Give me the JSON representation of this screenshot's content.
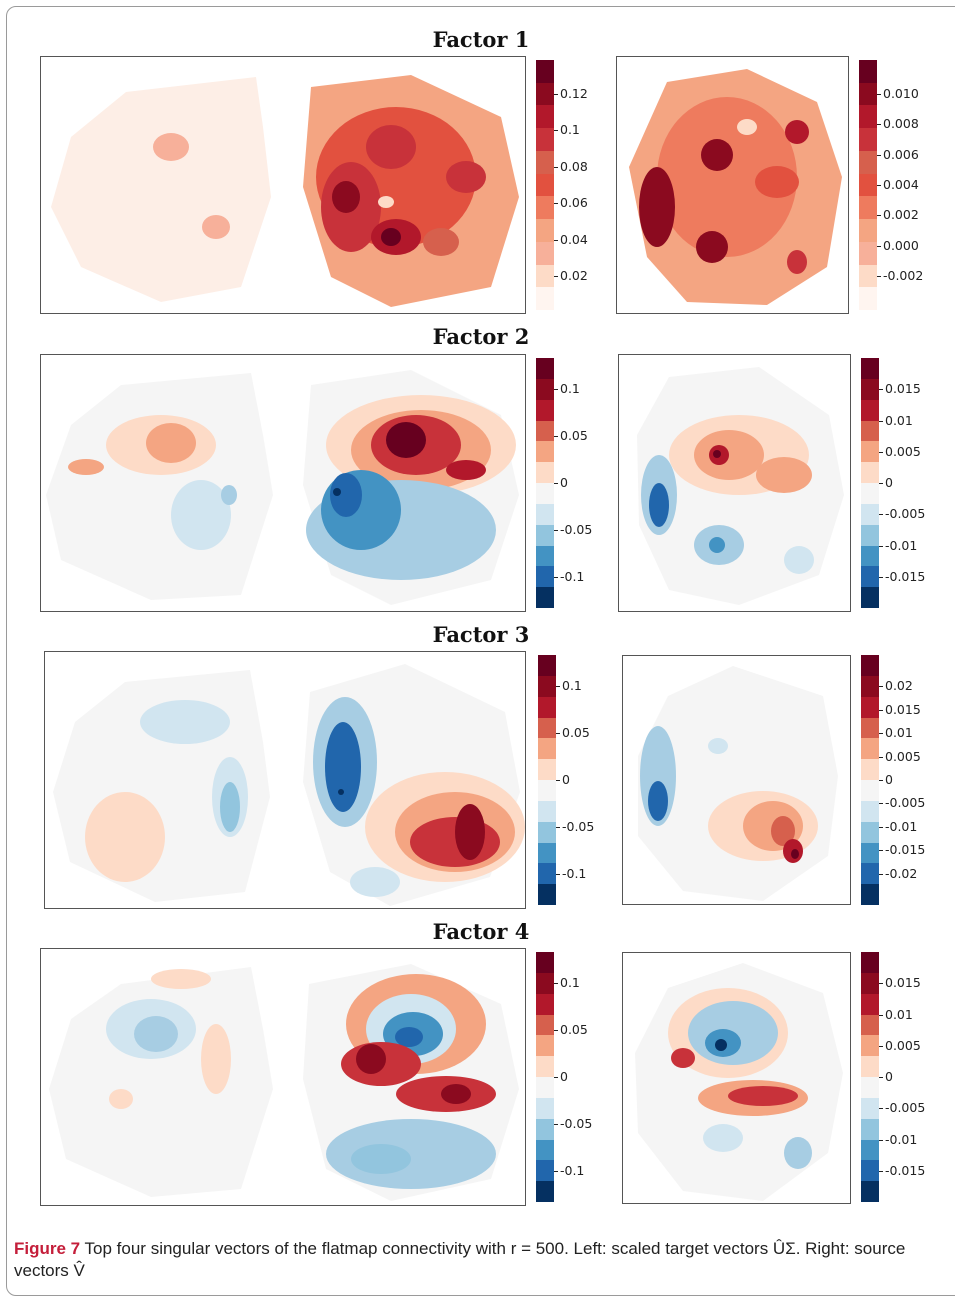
{
  "colors": {
    "red": [
      "#fff5f0",
      "#fddbc7",
      "#f7b09a",
      "#f4a582",
      "#ee7b5e",
      "#e2513f",
      "#d6604d",
      "#c8323a",
      "#b2182b",
      "#8b0a1f",
      "#67001f"
    ],
    "blue": [
      "#d1e5f0",
      "#a7cde3",
      "#92c5de",
      "#6aa8d0",
      "#4393c3",
      "#2a6fb0",
      "#2166ac",
      "#0b4a8a",
      "#053061"
    ],
    "neutral": "#f5f5f5"
  },
  "factors": [
    {
      "title": "Factor 1",
      "left_ticks": [
        "0.12",
        "0.1",
        "0.08",
        "0.06",
        "0.04",
        "0.02"
      ],
      "right_ticks": [
        "0.010",
        "0.008",
        "0.006",
        "0.004",
        "0.002",
        "0.000",
        "-0.002"
      ],
      "diverging": false
    },
    {
      "title": "Factor 2",
      "left_ticks": [
        "0.1",
        "0.05",
        "0",
        "-0.05",
        "-0.1"
      ],
      "right_ticks": [
        "0.015",
        "0.01",
        "0.005",
        "0",
        "-0.005",
        "-0.01",
        "-0.015"
      ],
      "diverging": true
    },
    {
      "title": "Factor 3",
      "left_ticks": [
        "0.1",
        "0.05",
        "0",
        "-0.05",
        "-0.1"
      ],
      "right_ticks": [
        "0.02",
        "0.015",
        "0.01",
        "0.005",
        "0",
        "-0.005",
        "-0.01",
        "-0.015",
        "-0.02"
      ],
      "diverging": true
    },
    {
      "title": "Factor 4",
      "left_ticks": [
        "0.1",
        "0.05",
        "0",
        "-0.05",
        "-0.1"
      ],
      "right_ticks": [
        "0.015",
        "0.01",
        "0.005",
        "0",
        "-0.005",
        "-0.01",
        "-0.015"
      ],
      "diverging": true
    }
  ],
  "caption": {
    "label": "Figure 7",
    "text": "Top four singular vectors of the flatmap connectivity with r = 500. Left: scaled target vectors ÛΣ. Right: source vectors V̂"
  }
}
